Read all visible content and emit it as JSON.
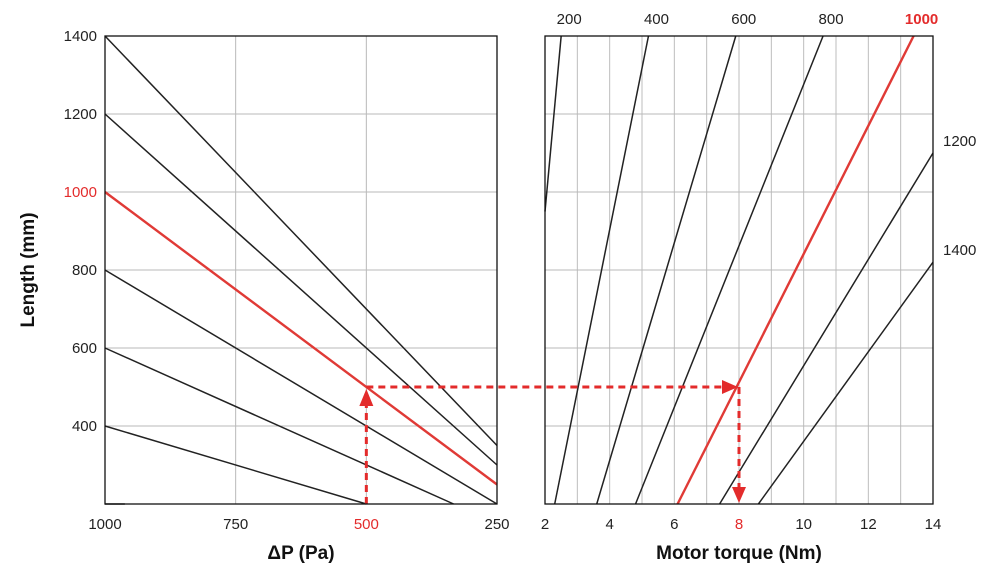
{
  "chart_data": [
    {
      "type": "line",
      "id": "pressure-panel",
      "xlabel": "ΔP (Pa)",
      "ylabel": "Length (mm)",
      "xlim": [
        1000,
        250
      ],
      "ylim": [
        200,
        1400
      ],
      "x_ticks": [
        1000,
        750,
        500,
        250
      ],
      "y_ticks": [
        400,
        600,
        800,
        1000,
        1200,
        1400
      ],
      "highlight_x_tick": 500,
      "highlight_y_tick": 1000,
      "grid": true,
      "series": [
        {
          "name": "",
          "points": [
            [
              1000,
              1400
            ],
            [
              250,
              350
            ]
          ],
          "highlight": false
        },
        {
          "name": "",
          "points": [
            [
              1000,
              1200
            ],
            [
              250,
              300
            ]
          ],
          "highlight": false
        },
        {
          "name": "",
          "points": [
            [
              1000,
              1000
            ],
            [
              250,
              250
            ]
          ],
          "highlight": true
        },
        {
          "name": "",
          "points": [
            [
              1000,
              800
            ],
            [
              250,
              200
            ]
          ],
          "highlight": false
        },
        {
          "name": "",
          "points": [
            [
              1000,
              600
            ],
            [
              333,
              200
            ]
          ],
          "highlight": false
        },
        {
          "name": "",
          "points": [
            [
              1000,
              400
            ],
            [
              500,
              200
            ]
          ],
          "highlight": false
        },
        {
          "name": "",
          "points": [
            [
              1000,
              200
            ],
            [
              962,
              200
            ]
          ],
          "highlight": false
        }
      ]
    },
    {
      "type": "line",
      "id": "torque-panel",
      "xlabel": "Motor torque (Nm)",
      "ylabel": "",
      "xlim": [
        2,
        14
      ],
      "ylim": [
        200,
        1400
      ],
      "x_ticks": [
        2,
        4,
        6,
        8,
        10,
        12,
        14
      ],
      "highlight_x_tick": 8,
      "grid": true,
      "series": [
        {
          "name": "200",
          "points": [
            [
              2,
              950
            ],
            [
              2.5,
              1400
            ]
          ],
          "highlight": false
        },
        {
          "name": "400",
          "points": [
            [
              2.3,
              200
            ],
            [
              5.2,
              1400
            ]
          ],
          "highlight": false
        },
        {
          "name": "600",
          "points": [
            [
              3.6,
              200
            ],
            [
              7.9,
              1400
            ]
          ],
          "highlight": false
        },
        {
          "name": "800",
          "points": [
            [
              4.8,
              200
            ],
            [
              10.6,
              1400
            ]
          ],
          "highlight": false
        },
        {
          "name": "1000",
          "points": [
            [
              6.1,
              200
            ],
            [
              13.4,
              1400
            ]
          ],
          "highlight": true
        },
        {
          "name": "1200",
          "points": [
            [
              7.4,
              200
            ],
            [
              14,
              1100
            ]
          ],
          "highlight": false
        },
        {
          "name": "1400",
          "points": [
            [
              8.6,
              200
            ],
            [
              14,
              820
            ]
          ],
          "highlight": false
        }
      ]
    }
  ],
  "guide": {
    "pressure": 500,
    "length": 500,
    "torque": 8
  },
  "colors": {
    "highlight": "#e32b2b",
    "line": "#222222",
    "grid": "#b9b9b9"
  }
}
